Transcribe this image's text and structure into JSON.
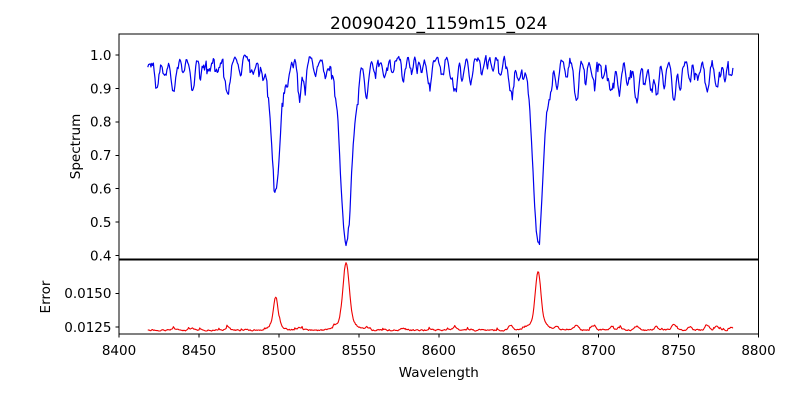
{
  "figure": {
    "background": "#ffffff",
    "frame_color": "#000000",
    "text_color": "#000000"
  },
  "chart_data": {
    "type": "line",
    "title": "20090420_1159m15_024",
    "xlabel": "Wavelength",
    "xlim": [
      8400,
      8800
    ],
    "x_data_range": [
      8418,
      8784
    ],
    "sample_step": 0.5,
    "noise_seed": 20090420,
    "x_ticks": {
      "values": [
        8400,
        8450,
        8500,
        8550,
        8600,
        8650,
        8700,
        8750,
        8800
      ],
      "labels": [
        "8400",
        "8450",
        "8500",
        "8550",
        "8600",
        "8650",
        "8700",
        "8750",
        "8800"
      ]
    },
    "panels": [
      {
        "name": "spectrum",
        "ylabel": "Spectrum",
        "line_color": "#0000ee",
        "ylim": [
          0.388,
          1.063
        ],
        "y_ticks": {
          "values": [
            0.4,
            0.5,
            0.6,
            0.7,
            0.8,
            0.9,
            1.0
          ],
          "labels": [
            "0.4",
            "0.5",
            "0.6",
            "0.7",
            "0.8",
            "0.9",
            "1.0"
          ]
        },
        "continuum": 0.99,
        "noise_amplitude": 0.018,
        "dip_probability": 0.1,
        "broad_depressions_cdw": [
          [
            8421,
            0.018,
            9
          ],
          [
            8731,
            0.012,
            35
          ]
        ],
        "main_lines_note": "Ca II triplet absorption lines: 8498 to 0.60, 8542 to 0.42, 8662 to 0.44",
        "absorption_lines_cdw": [
          [
            8424,
            0.055,
            1.0
          ],
          [
            8429,
            0.04,
            0.9
          ],
          [
            8434,
            0.095,
            1.3
          ],
          [
            8440,
            0.05,
            0.9
          ],
          [
            8446,
            0.095,
            1.3
          ],
          [
            8451,
            0.05,
            0.9
          ],
          [
            8457,
            0.04,
            0.9
          ],
          [
            8462,
            0.045,
            0.9
          ],
          [
            8468,
            0.105,
            1.4
          ],
          [
            8476,
            0.05,
            0.9
          ],
          [
            8484,
            0.045,
            0.9
          ],
          [
            8490,
            0.04,
            0.9
          ],
          [
            8498.02,
            0.35,
            2.6
          ],
          [
            8498.02,
            0.04,
            6.5
          ],
          [
            8505,
            0.05,
            0.9
          ],
          [
            8513,
            0.095,
            1.2
          ],
          [
            8516,
            0.075,
            1.0
          ],
          [
            8523,
            0.045,
            0.9
          ],
          [
            8529,
            0.04,
            0.9
          ],
          [
            8542.09,
            0.51,
            3.3
          ],
          [
            8542.09,
            0.05,
            8
          ],
          [
            8548.5,
            0.05,
            1.0
          ],
          [
            8555,
            0.095,
            1.3
          ],
          [
            8560,
            0.05,
            0.9
          ],
          [
            8566,
            0.055,
            1.0
          ],
          [
            8571,
            0.045,
            0.9
          ],
          [
            8578,
            0.06,
            1.1
          ],
          [
            8583,
            0.05,
            0.9
          ],
          [
            8589,
            0.04,
            0.9
          ],
          [
            8594,
            0.07,
            1.2
          ],
          [
            8602,
            0.05,
            0.9
          ],
          [
            8607,
            0.045,
            0.9
          ],
          [
            8610,
            0.095,
            1.4
          ],
          [
            8615,
            0.05,
            0.9
          ],
          [
            8620,
            0.075,
            1.2
          ],
          [
            8627,
            0.05,
            0.9
          ],
          [
            8634,
            0.045,
            0.9
          ],
          [
            8639,
            0.04,
            0.9
          ],
          [
            8645,
            0.095,
            1.4
          ],
          [
            8650,
            0.055,
            1.0
          ],
          [
            8662.14,
            0.5,
            3.1
          ],
          [
            8662.14,
            0.05,
            7
          ],
          [
            8669,
            0.05,
            1.0
          ],
          [
            8674,
            0.07,
            1.1
          ],
          [
            8680,
            0.05,
            0.9
          ],
          [
            8686,
            0.115,
            1.3
          ],
          [
            8692,
            0.05,
            0.9
          ],
          [
            8697,
            0.065,
            1.1
          ],
          [
            8703,
            0.05,
            0.9
          ],
          [
            8708,
            0.09,
            1.3
          ],
          [
            8713,
            0.09,
            1.1
          ],
          [
            8718,
            0.06,
            1.0
          ],
          [
            8724,
            0.115,
            1.5
          ],
          [
            8729,
            0.06,
            1.0
          ],
          [
            8733,
            0.08,
            1.1
          ],
          [
            8736.5,
            0.1,
            1.1
          ],
          [
            8741,
            0.07,
            1.0
          ],
          [
            8747,
            0.12,
            1.2
          ],
          [
            8751,
            0.085,
            1.0
          ],
          [
            8757,
            0.065,
            1.0
          ],
          [
            8762,
            0.05,
            0.9
          ],
          [
            8768,
            0.095,
            1.2
          ],
          [
            8774,
            0.085,
            1.1
          ],
          [
            8779,
            0.055,
            1.0
          ],
          [
            8783,
            0.05,
            0.9
          ]
        ]
      },
      {
        "name": "error",
        "ylabel": "Error",
        "line_color": "#ee0000",
        "ylim": [
          0.01198,
          0.01752
        ],
        "y_ticks": {
          "values": [
            0.0125,
            0.015
          ],
          "labels": [
            "0.0125",
            "0.0150"
          ]
        },
        "baseline": 0.01227,
        "noise_amplitude": 0.0001,
        "spike_probability": 0.06,
        "error_peaks_chw": [
          [
            8434,
            0.00015,
            1.2
          ],
          [
            8446,
            0.00015,
            1.2
          ],
          [
            8468,
            0.0002,
            1.3
          ],
          [
            8498.02,
            0.0021,
            1.4
          ],
          [
            8498.02,
            0.0004,
            4
          ],
          [
            8513,
            0.0002,
            1.2
          ],
          [
            8542.09,
            0.0042,
            1.9
          ],
          [
            8542.09,
            0.0008,
            5
          ],
          [
            8555,
            0.0002,
            1.2
          ],
          [
            8578,
            0.00015,
            1.2
          ],
          [
            8610,
            0.0002,
            1.3
          ],
          [
            8645,
            0.0004,
            1.3
          ],
          [
            8662.14,
            0.0037,
            1.7
          ],
          [
            8662.14,
            0.0007,
            5
          ],
          [
            8674,
            0.0002,
            1.2
          ],
          [
            8686,
            0.0004,
            1.3
          ],
          [
            8697,
            0.0003,
            1.4
          ],
          [
            8708,
            0.00025,
            1.3
          ],
          [
            8713,
            0.0002,
            1.2
          ],
          [
            8724,
            0.0003,
            1.4
          ],
          [
            8736,
            0.00025,
            1.2
          ],
          [
            8747,
            0.0004,
            1.4
          ],
          [
            8757,
            0.00025,
            1.2
          ],
          [
            8768,
            0.00035,
            1.4
          ],
          [
            8774,
            0.0003,
            1.2
          ],
          [
            8783,
            0.0002,
            1.2
          ]
        ]
      }
    ]
  }
}
